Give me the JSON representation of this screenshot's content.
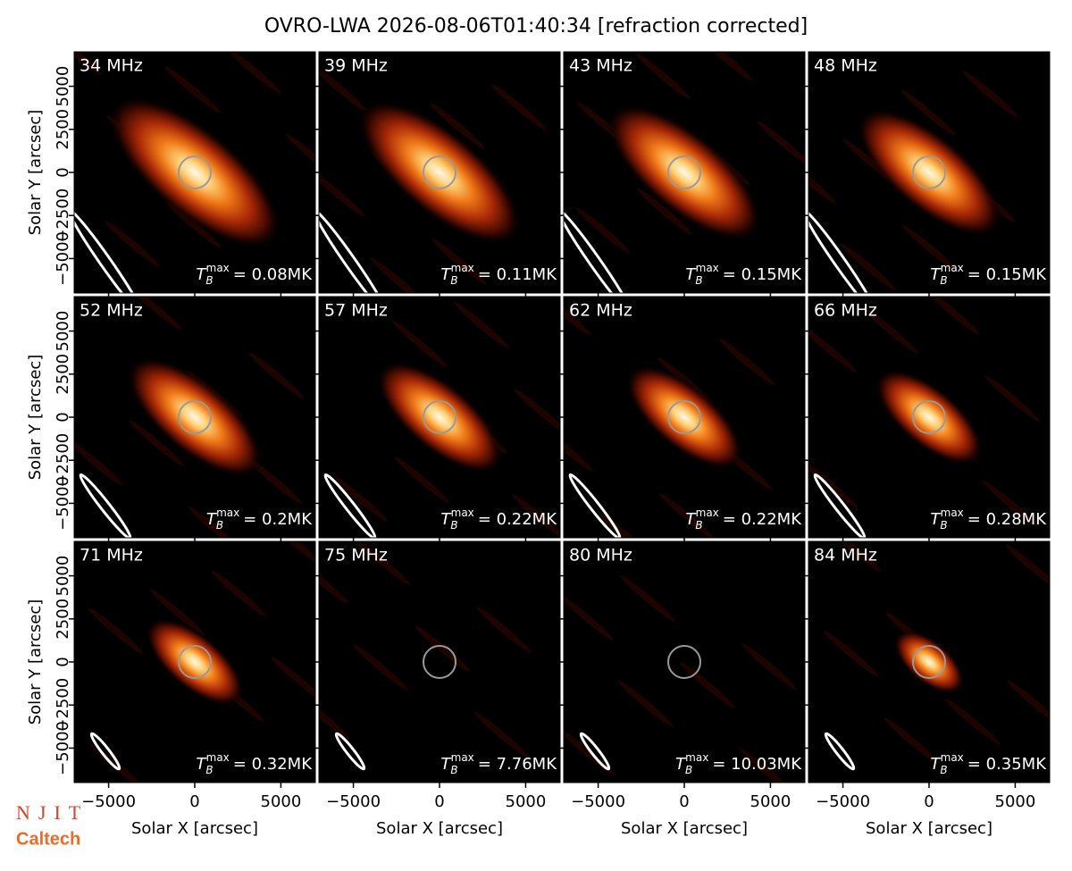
{
  "title": "OVRO-LWA 2026-08-06T01:40:34 [refraction corrected]",
  "x_label": "Solar X [arcsec]",
  "y_label": "Solar Y [arcsec]",
  "xlim": [
    -7000,
    7000
  ],
  "ylim": [
    -7000,
    7000
  ],
  "xticks": [
    {
      "value": -5000,
      "label": "−5000"
    },
    0,
    5000
  ],
  "yticks": [
    {
      "value": -5000,
      "label": "−5000"
    },
    {
      "value": -2500,
      "label": "−2500"
    },
    0,
    2500,
    5000
  ],
  "tmax_symbol": {
    "base": "T",
    "sub": "B",
    "sup": "max"
  },
  "panels": [
    {
      "freq": "34 MHz",
      "tmax": "= 0.08MK"
    },
    {
      "freq": "39 MHz",
      "tmax": "= 0.11MK"
    },
    {
      "freq": "43 MHz",
      "tmax": "= 0.15MK"
    },
    {
      "freq": "48 MHz",
      "tmax": "= 0.15MK"
    },
    {
      "freq": "52 MHz",
      "tmax": "= 0.2MK"
    },
    {
      "freq": "57 MHz",
      "tmax": "= 0.22MK"
    },
    {
      "freq": "62 MHz",
      "tmax": "= 0.22MK"
    },
    {
      "freq": "66 MHz",
      "tmax": "= 0.28MK"
    },
    {
      "freq": "71 MHz",
      "tmax": "= 0.32MK"
    },
    {
      "freq": "75 MHz",
      "tmax": "= 7.76MK"
    },
    {
      "freq": "80 MHz",
      "tmax": "= 10.03MK"
    },
    {
      "freq": "84 MHz",
      "tmax": "= 0.35MK"
    }
  ],
  "logos": [
    "NJIT",
    "Caltech"
  ]
}
